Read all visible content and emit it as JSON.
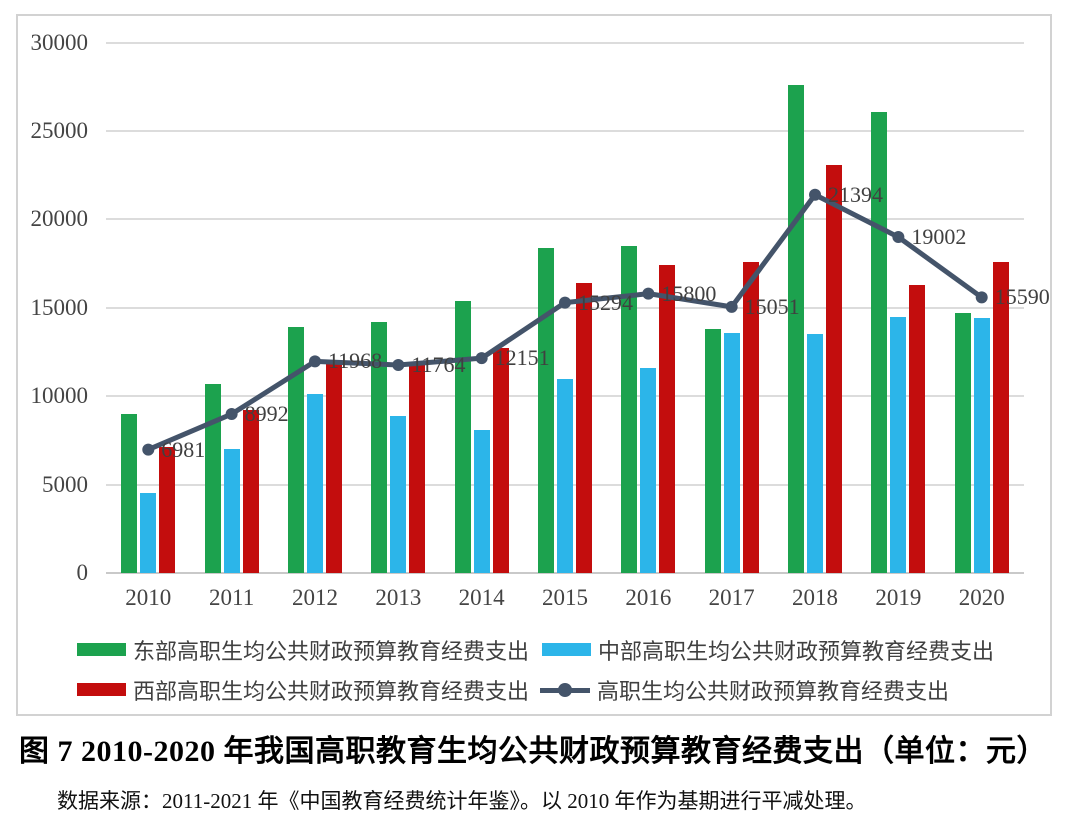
{
  "chart_data": {
    "type": "bar+line",
    "title": "图 7 2010-2020 年我国高职教育生均公共财政预算教育经费支出（单位：元）",
    "categories": [
      "2010",
      "2011",
      "2012",
      "2013",
      "2014",
      "2015",
      "2016",
      "2017",
      "2018",
      "2019",
      "2020"
    ],
    "series": [
      {
        "name": "东部高职生均公共财政预算教育经费支出",
        "type": "bar",
        "color": "#1CA24E",
        "values": [
          9000,
          10700,
          13900,
          14200,
          15400,
          18400,
          18500,
          13800,
          27600,
          26100,
          14700
        ]
      },
      {
        "name": "中部高职生均公共财政预算教育经费支出",
        "type": "bar",
        "color": "#2CB5E9",
        "values": [
          4500,
          7000,
          10100,
          8900,
          8100,
          11000,
          11600,
          13600,
          13500,
          14500,
          14400
        ]
      },
      {
        "name": "西部高职生均公共财政预算教育经费支出",
        "type": "bar",
        "color": "#C30D0D",
        "values": [
          7100,
          9200,
          11800,
          11800,
          12700,
          16400,
          17400,
          17600,
          23100,
          16300,
          17600
        ]
      },
      {
        "name": "高职生均公共财政预算教育经费支出",
        "type": "line",
        "color": "#44546A",
        "values": [
          6981,
          8992,
          11968,
          11764,
          12151,
          15294,
          15800,
          15051,
          21394,
          19002,
          15590
        ],
        "labels": [
          "6981",
          "8992",
          "11968",
          "11764",
          "12151",
          "15294",
          "15800",
          "15051",
          "21394",
          "19002",
          "15590"
        ]
      }
    ],
    "ylim": [
      0,
      30000
    ],
    "ytick_step": 5000,
    "yticks": [
      "0",
      "5000",
      "10000",
      "15000",
      "20000",
      "25000",
      "30000"
    ],
    "grid": true,
    "legend_position": "bottom",
    "gridline_color": "#dcdcdc"
  },
  "caption": {
    "title": "图 7 2010-2020 年我国高职教育生均公共财政预算教育经费支出（单位：元）",
    "source": "数据来源：2011-2021 年《中国教育经费统计年鉴》。以 2010 年作为基期进行平减处理。"
  }
}
